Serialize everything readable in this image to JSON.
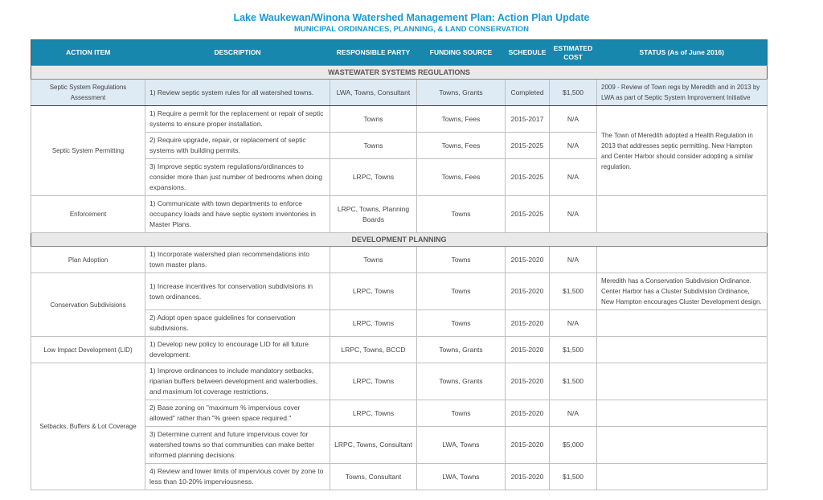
{
  "page": {
    "title": "Lake Waukewan/Winona Watershed Management Plan:  Action Plan Update",
    "subtitle": "MUNICIPAL ORDINANCES, PLANNING, &  LAND CONSERVATION"
  },
  "colors": {
    "title_blue": "#1b9ad2",
    "header_bg": "#1787ad",
    "section_bg": "#e9e9e9",
    "section_text": "#595959",
    "body_text": "#444444",
    "highlight_row_bg": "#deeaf4"
  },
  "table": {
    "columns": [
      "ACTION ITEM",
      "DESCRIPTION",
      "RESPONSIBLE PARTY",
      "FUNDING SOURCE",
      "SCHEDULE",
      "ESTIMATED COST",
      "STATUS (As of June 2016)"
    ],
    "sections": [
      {
        "title": "WASTEWATER SYSTEMS REGULATIONS",
        "groups": [
          {
            "action": "Septic System Regulations Assessment",
            "highlight": true,
            "merged_status": true,
            "status": "2009 - Review of Town regs by Meredith and in 2013 by LWA as part of Septic System Improvement Initiative",
            "rows": [
              {
                "description": "1) Review septic system rules for all watershed towns.",
                "responsible": "LWA, Towns, Consultant",
                "funding": "Towns, Grants",
                "schedule": "Completed",
                "cost": "$1,500"
              }
            ]
          },
          {
            "action": "Septic System Permitting",
            "highlight": false,
            "merged_status": true,
            "status": "The Town of Meredith adopted a Health Regulation in 2013 that addresses septic permitting.  New Hampton and Center Harbor should consider adopting a similar regulation.",
            "rows": [
              {
                "description": "1) Require a permit for the replacement or repair of septic systems to ensure proper installation.",
                "responsible": "Towns",
                "funding": "Towns, Fees",
                "schedule": "2015-2017",
                "cost": "N/A"
              },
              {
                "description": "2) Require upgrade, repair, or replacement of septic systems with building permits.",
                "responsible": "Towns",
                "funding": "Towns, Fees",
                "schedule": "2015-2025",
                "cost": "N/A"
              },
              {
                "description": "3) Improve septic system regulations/ordinances to consider more than just number of bedrooms when doing expansions.",
                "responsible": "LRPC, Towns",
                "funding": "Towns, Fees",
                "schedule": "2015-2025",
                "cost": "N/A"
              }
            ]
          },
          {
            "action": "Enforcement",
            "highlight": false,
            "merged_status": true,
            "status": "",
            "rows": [
              {
                "description": "1) Communicate with town departments to enforce occupancy loads and have septic system inventories in Master Plans.",
                "responsible": "LRPC, Towns, Planning Boards",
                "funding": "Towns",
                "schedule": "2015-2025",
                "cost": "N/A"
              }
            ]
          }
        ]
      },
      {
        "title": "DEVELOPMENT PLANNING",
        "groups": [
          {
            "action": "Plan Adoption",
            "highlight": false,
            "merged_status": true,
            "status": "",
            "rows": [
              {
                "description": "1) Incorporate watershed plan recommendations into town master plans.",
                "responsible": "Towns",
                "funding": "Towns",
                "schedule": "2015-2020",
                "cost": "N/A"
              }
            ]
          },
          {
            "action": "Conservation Subdivisions",
            "highlight": false,
            "merged_status": false,
            "rows": [
              {
                "description": "1) Increase incentives for conservation subdivisions in town ordinances.",
                "responsible": "LRPC, Towns",
                "funding": "Towns",
                "schedule": "2015-2020",
                "cost": "$1,500",
                "status": "Meredith has a Conservation Subdivision Ordinance. Center Harbor has a Cluster Subdivision Ordinance, New Hampton encourages Cluster Development design."
              },
              {
                "description": "2) Adopt open space guidelines for conservation subdivisions.",
                "responsible": "LRPC, Towns",
                "funding": "Towns",
                "schedule": "2015-2020",
                "cost": "N/A",
                "status": ""
              }
            ]
          },
          {
            "action": "Low Impact Development (LID)",
            "highlight": false,
            "merged_status": true,
            "status": "",
            "rows": [
              {
                "description": "1) Develop new policy to encourage LID for all future development.",
                "responsible": "LRPC, Towns, BCCD",
                "funding": "Towns, Grants",
                "schedule": "2015-2020",
                "cost": "$1,500"
              }
            ]
          },
          {
            "action": "Setbacks, Buffers & Lot Coverage",
            "highlight": false,
            "merged_status": false,
            "rows": [
              {
                "description": "1) Improve ordinances to include mandatory setbacks, riparian buffers between development and waterbodies, and maximum lot coverage restrictions.",
                "responsible": "LRPC, Towns",
                "funding": "Towns, Grants",
                "schedule": "2015-2020",
                "cost": "$1,500",
                "status": ""
              },
              {
                "description": "2) Base zoning on \"maximum % impervious cover allowed\" rather than \"% green space required.\"",
                "responsible": "LRPC, Towns",
                "funding": "Towns",
                "schedule": "2015-2020",
                "cost": "N/A",
                "status": ""
              },
              {
                "description": "3) Determine current and future impervious cover for watershed towns so that communities can make better informed planning decisions.",
                "responsible": "LRPC, Towns, Consultant",
                "funding": "LWA, Towns",
                "schedule": "2015-2020",
                "cost": "$5,000",
                "status": ""
              },
              {
                "description": "4) Review and lower limits of impervious cover by zone to less than 10-20% imperviousness.",
                "responsible": "Towns, Consultant",
                "funding": "LWA, Towns",
                "schedule": "2015-2020",
                "cost": "$1,500",
                "status": ""
              }
            ]
          }
        ]
      }
    ]
  }
}
